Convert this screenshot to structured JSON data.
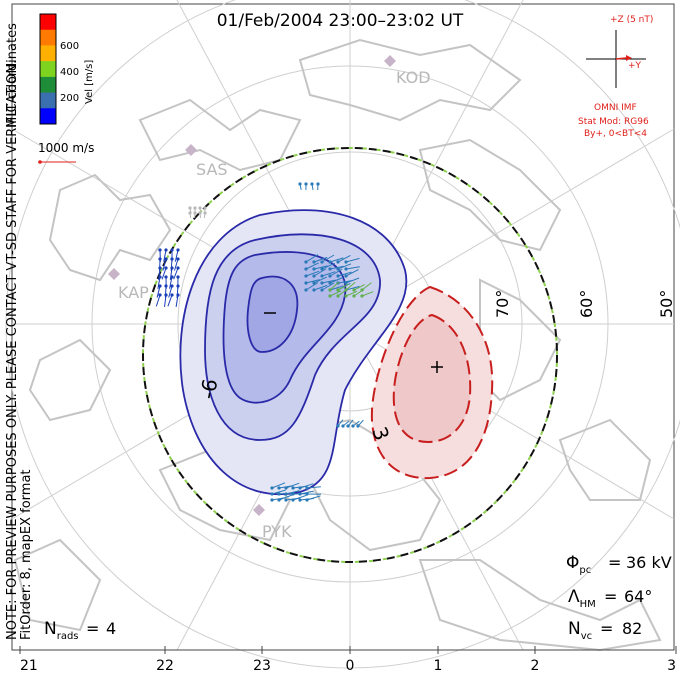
{
  "title": "01/Feb/2004 23:00–23:02 UT",
  "coords_label": "MLT coordinates",
  "colorbar": {
    "label": "Vel [m/s]",
    "ticks": [
      "600",
      "400",
      "200"
    ],
    "colors": [
      "#ff0000",
      "#ff7a00",
      "#ffb000",
      "#7ed321",
      "#1f8c3a",
      "#3a6fb0",
      "#0000ff"
    ]
  },
  "vector_scale_label": "1000 m/s",
  "side_note": "NOTE: FOR PREVIEW PURPOSES ONLY. PLEASE CONTACT VT-SD STAFF FOR VERIFICATION.",
  "side_note2": "FitOrder: 8, mapEX format",
  "imf": {
    "z_label": "+Z (5 nT)",
    "y_label": "+Y",
    "source": "OMNI IMF",
    "stat_mod": "Stat Mod: RG96",
    "stat_cond": "By+, 0<BT<4"
  },
  "stations": [
    "KOD",
    "SAS",
    "KAP",
    "PYK"
  ],
  "lat_labels": [
    "70°",
    "60°",
    "50°"
  ],
  "contour_labels": {
    "neg": "-6",
    "pos": "3"
  },
  "stats": {
    "phi_pc": "36 kV",
    "lambda_hm": "64°",
    "n_vc": "82",
    "n_rads": "4"
  },
  "mlt_ticks": [
    "21",
    "22",
    "23",
    "0",
    "1",
    "2",
    "3"
  ]
}
